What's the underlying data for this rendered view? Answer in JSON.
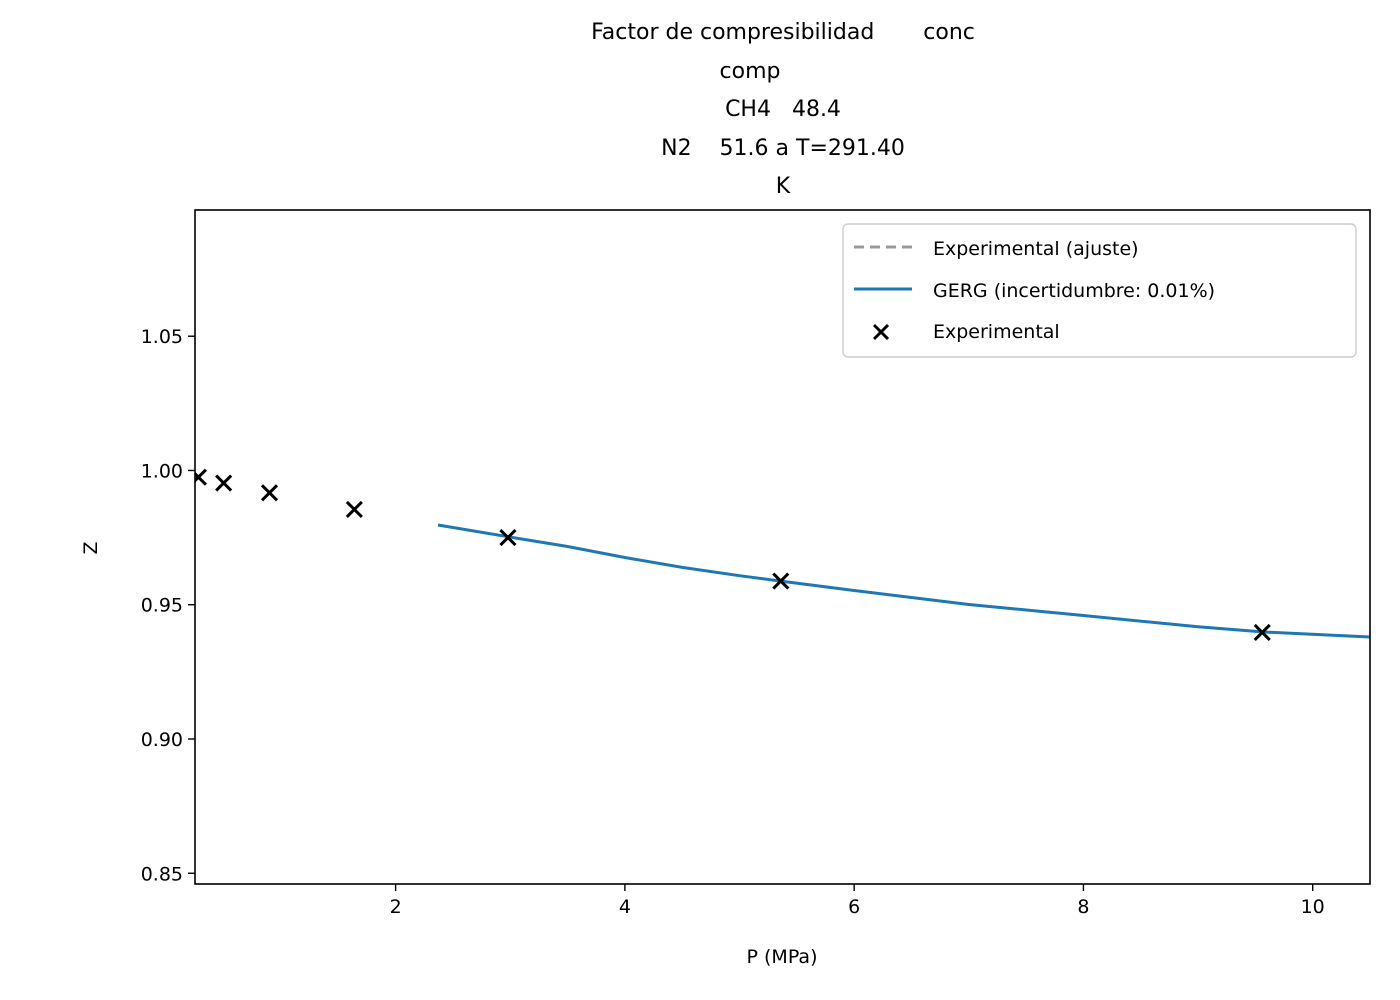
{
  "chart_data": {
    "type": "line",
    "title": [
      "Factor de compresibilidad       conc",
      "comp",
      "CH4   48.4",
      "N2    51.6 a T=291.40",
      "K"
    ],
    "xlabel": "P (MPa)",
    "ylabel": "Z",
    "xlim": [
      0.25,
      10.5
    ],
    "ylim": [
      0.846,
      1.097
    ],
    "xticks": [
      2,
      4,
      6,
      8,
      10
    ],
    "xtick_labels": [
      "2",
      "4",
      "6",
      "8",
      "10"
    ],
    "yticks": [
      0.85,
      0.9,
      0.95,
      1.0,
      1.05
    ],
    "ytick_labels": [
      "0.85",
      "0.90",
      "0.95",
      "1.00",
      "1.05"
    ],
    "grid": false,
    "legend_position": "top-right",
    "series": [
      {
        "name": "Experimental (ajuste)",
        "kind": "line",
        "style": "dashed",
        "color": "#999999",
        "x": [],
        "y": []
      },
      {
        "name": "GERG (incertidumbre: 0.01%)",
        "kind": "line",
        "style": "solid",
        "color": "#1f77b4",
        "x": [
          2.37,
          3.0,
          3.5,
          4.0,
          4.5,
          5.0,
          5.36,
          6.0,
          7.0,
          8.0,
          9.0,
          9.56,
          10.5
        ],
        "y": [
          0.9797,
          0.9752,
          0.9717,
          0.9676,
          0.9639,
          0.9608,
          0.9588,
          0.9553,
          0.9501,
          0.946,
          0.9418,
          0.9399,
          0.938
        ]
      },
      {
        "name": "Experimental",
        "kind": "scatter",
        "marker": "x",
        "color": "#000000",
        "x": [
          0.28,
          0.5,
          0.9,
          1.64,
          2.98,
          5.36,
          9.56
        ],
        "y": [
          0.9975,
          0.9953,
          0.9917,
          0.9855,
          0.975,
          0.9588,
          0.9397
        ]
      }
    ]
  }
}
